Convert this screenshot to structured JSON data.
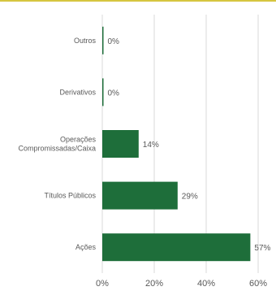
{
  "chart_data": {
    "type": "bar",
    "orientation": "horizontal",
    "categories": [
      "Outros",
      "Derivativos",
      "Operações Compromissadas/Caixa",
      "Títulos Públicos",
      "Ações"
    ],
    "category_lines": [
      [
        "Outros"
      ],
      [
        "Derivativos"
      ],
      [
        "Operações",
        "Compromissadas/Caixa"
      ],
      [
        "Títulos Públicos"
      ],
      [
        "Ações"
      ]
    ],
    "values": [
      0,
      0,
      14,
      29,
      57
    ],
    "value_labels": [
      "0%",
      "0%",
      "14%",
      "29%",
      "57%"
    ],
    "xlim": [
      0,
      60
    ],
    "xticks": [
      0,
      20,
      40,
      60
    ],
    "xtick_labels": [
      "0%",
      "20%",
      "40%",
      "60%"
    ],
    "grid": true,
    "bar_color": "#1e6e3a",
    "title": "",
    "xlabel": "",
    "ylabel": ""
  }
}
